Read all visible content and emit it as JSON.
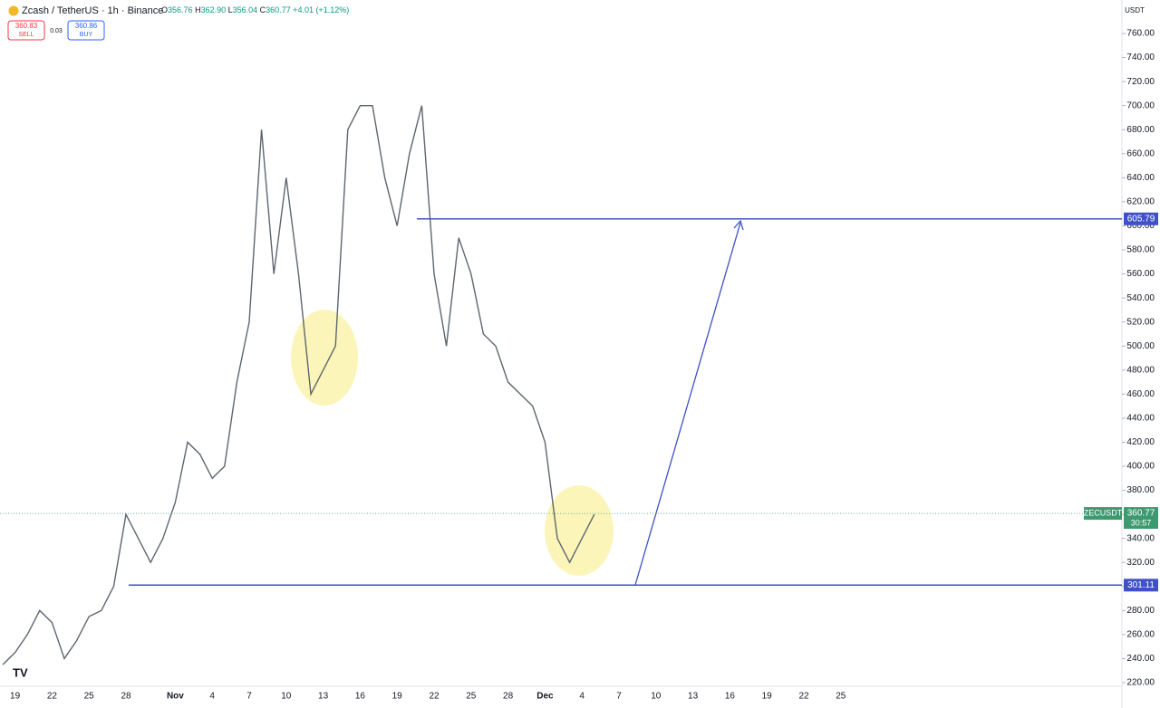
{
  "header": {
    "symbol": "Zcash / TetherUS · 1h · Binance",
    "ohlc": [
      {
        "label": "O",
        "value": "356.76"
      },
      {
        "label": "H",
        "value": "362.90"
      },
      {
        "label": "L",
        "value": "356.04"
      },
      {
        "label": "C",
        "value": "360.77"
      }
    ],
    "change": "+4.01 (+1.12%)",
    "sell": {
      "price": "360.83",
      "label": "SELL"
    },
    "spread": "0.03",
    "buy": {
      "price": "360.86",
      "label": "BUY"
    },
    "currency": "USDT"
  },
  "chart_data": {
    "type": "line",
    "color": "#5d6670",
    "categories": [
      null,
      "19",
      null,
      null,
      "22",
      null,
      null,
      "25",
      null,
      null,
      "28",
      null,
      null,
      null,
      "Nov",
      null,
      null,
      "4",
      null,
      null,
      "7",
      null,
      null,
      "10",
      null,
      null,
      "13",
      null,
      null,
      "16",
      null,
      null,
      "19",
      null,
      null,
      "22",
      null,
      null,
      "25",
      null,
      null,
      "28",
      null,
      null,
      "Dec",
      null,
      null,
      "4",
      null,
      null,
      "7",
      null,
      null,
      "10",
      null,
      null,
      "13",
      null,
      null,
      "16",
      null,
      null,
      "19",
      null,
      null,
      "22",
      null,
      null,
      "25",
      null
    ],
    "series": [
      {
        "name": "ZECUSDT",
        "values": [
          235,
          245,
          260,
          280,
          270,
          240,
          255,
          275,
          280,
          300,
          360,
          340,
          320,
          340,
          370,
          420,
          410,
          390,
          400,
          470,
          520,
          680,
          560,
          640,
          560,
          460,
          480,
          500,
          680,
          700,
          700,
          640,
          600,
          660,
          700,
          560,
          500,
          590,
          560,
          510,
          500,
          470,
          460,
          450,
          420,
          340,
          320,
          340,
          360,
          null,
          null,
          null,
          null,
          null,
          null,
          null,
          null,
          null,
          null,
          null,
          null,
          null,
          null,
          null,
          null,
          null,
          null,
          null,
          null,
          null
        ]
      }
    ],
    "ylim": [
      220,
      760
    ],
    "yticks": [
      {
        "value": 220,
        "label": "220.00"
      },
      {
        "value": 240,
        "label": "240.00"
      },
      {
        "value": 260,
        "label": "260.00"
      },
      {
        "value": 280,
        "label": "280.00"
      },
      {
        "value": 300,
        "label": "300.00"
      },
      {
        "value": 320,
        "label": "320.00"
      },
      {
        "value": 340,
        "label": "340.00"
      },
      {
        "value": 360,
        "label": "360.00"
      },
      {
        "value": 380,
        "label": "380.00"
      },
      {
        "value": 400,
        "label": "400.00"
      },
      {
        "value": 420,
        "label": "420.00"
      },
      {
        "value": 440,
        "label": "440.00"
      },
      {
        "value": 460,
        "label": "460.00"
      },
      {
        "value": 480,
        "label": "480.00"
      },
      {
        "value": 500,
        "label": "500.00"
      },
      {
        "value": 520,
        "label": "520.00"
      },
      {
        "value": 540,
        "label": "540.00"
      },
      {
        "value": 560,
        "label": "560.00"
      },
      {
        "value": 580,
        "label": "580.00"
      },
      {
        "value": 600,
        "label": "600.00"
      },
      {
        "value": 620,
        "label": "620.00"
      },
      {
        "value": 640,
        "label": "640.00"
      },
      {
        "value": 660,
        "label": "660.00"
      },
      {
        "value": 680,
        "label": "680.00"
      },
      {
        "value": 700,
        "label": "700.00"
      },
      {
        "value": 720,
        "label": "720.00"
      },
      {
        "value": 740,
        "label": "740.00"
      },
      {
        "value": 760,
        "label": "760.00"
      }
    ],
    "levels": [
      605.79,
      301.11
    ],
    "level_color": "#3f51c7",
    "current": {
      "symbol": "ZECUSDT",
      "price": 360.77,
      "countdown": "30:57",
      "color": "#3d9970"
    }
  }
}
